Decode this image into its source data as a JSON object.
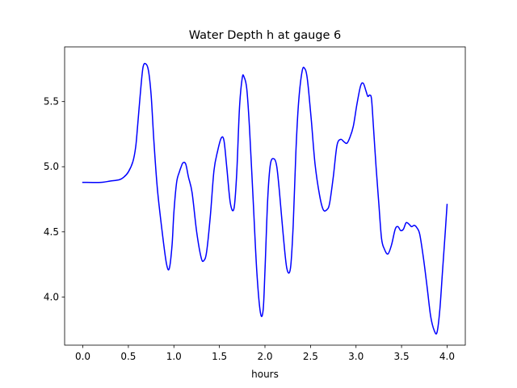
{
  "chart_data": {
    "type": "line",
    "title": "Water Depth h at gauge 6",
    "xlabel": "hours",
    "ylabel": "",
    "xlim": [
      -0.2,
      4.2
    ],
    "ylim": [
      3.63,
      5.92
    ],
    "xticks": [
      0.0,
      0.5,
      1.0,
      1.5,
      2.0,
      2.5,
      3.0,
      3.5,
      4.0
    ],
    "xtick_labels": [
      "0.0",
      "0.5",
      "1.0",
      "1.5",
      "2.0",
      "2.5",
      "3.0",
      "3.5",
      "4.0"
    ],
    "yticks": [
      4.0,
      4.5,
      5.0,
      5.5
    ],
    "ytick_labels": [
      "4.0",
      "4.5",
      "5.0",
      "5.5"
    ],
    "grid": false,
    "series": [
      {
        "color": "#0000ff",
        "x": [
          0.0,
          0.2,
          0.3,
          0.4,
          0.45,
          0.5,
          0.55,
          0.58,
          0.6,
          0.63,
          0.66,
          0.69,
          0.72,
          0.75,
          0.78,
          0.82,
          0.88,
          0.92,
          0.95,
          0.98,
          1.0,
          1.03,
          1.06,
          1.08,
          1.1,
          1.13,
          1.16,
          1.2,
          1.25,
          1.3,
          1.33,
          1.36,
          1.4,
          1.44,
          1.48,
          1.52,
          1.55,
          1.58,
          1.62,
          1.66,
          1.69,
          1.72,
          1.75,
          1.77,
          1.8,
          1.83,
          1.87,
          1.91,
          1.95,
          1.98,
          2.0,
          2.03,
          2.06,
          2.1,
          2.13,
          2.16,
          2.2,
          2.24,
          2.28,
          2.31,
          2.34,
          2.37,
          2.41,
          2.44,
          2.46,
          2.48,
          2.51,
          2.55,
          2.6,
          2.64,
          2.68,
          2.71,
          2.75,
          2.79,
          2.83,
          2.87,
          2.9,
          2.93,
          2.97,
          3.01,
          3.05,
          3.08,
          3.11,
          3.13,
          3.15,
          3.17,
          3.19,
          3.22,
          3.25,
          3.28,
          3.31,
          3.35,
          3.39,
          3.43,
          3.46,
          3.49,
          3.52,
          3.55,
          3.58,
          3.61,
          3.64,
          3.67,
          3.7,
          3.74,
          3.78,
          3.82,
          3.86,
          3.89,
          3.92,
          3.95,
          3.98,
          4.0
        ],
        "y": [
          4.88,
          4.88,
          4.89,
          4.9,
          4.92,
          4.96,
          5.04,
          5.15,
          5.3,
          5.55,
          5.76,
          5.79,
          5.74,
          5.55,
          5.2,
          4.82,
          4.45,
          4.25,
          4.22,
          4.4,
          4.65,
          4.88,
          4.96,
          5.0,
          5.03,
          5.02,
          4.92,
          4.8,
          4.5,
          4.3,
          4.28,
          4.35,
          4.62,
          4.97,
          5.12,
          5.22,
          5.2,
          5.0,
          4.72,
          4.68,
          4.95,
          5.45,
          5.68,
          5.69,
          5.6,
          5.3,
          4.75,
          4.2,
          3.88,
          3.9,
          4.2,
          4.75,
          5.02,
          5.06,
          5.0,
          4.8,
          4.48,
          4.22,
          4.22,
          4.55,
          5.12,
          5.5,
          5.74,
          5.75,
          5.7,
          5.58,
          5.35,
          5.02,
          4.78,
          4.67,
          4.67,
          4.72,
          4.92,
          5.16,
          5.21,
          5.19,
          5.18,
          5.22,
          5.31,
          5.48,
          5.62,
          5.64,
          5.58,
          5.54,
          5.55,
          5.52,
          5.32,
          5.0,
          4.72,
          4.45,
          4.37,
          4.33,
          4.4,
          4.52,
          4.54,
          4.51,
          4.52,
          4.57,
          4.56,
          4.54,
          4.55,
          4.53,
          4.48,
          4.3,
          4.08,
          3.85,
          3.74,
          3.73,
          3.9,
          4.2,
          4.5,
          4.71
        ]
      }
    ]
  }
}
